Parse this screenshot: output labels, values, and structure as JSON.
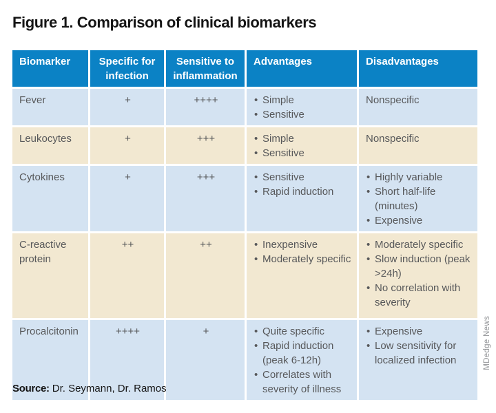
{
  "title": "Figure 1. Comparison of clinical biomarkers",
  "credit": "MDedge News",
  "source": {
    "label": "Source:",
    "names": "Dr. Seymann, Dr. Ramos"
  },
  "colors": {
    "header_bg": "#0B82C5",
    "header_text": "#FFFFFF",
    "row_blue": "#D4E3F2",
    "row_tan": "#F2E8D1",
    "body_text": "#57585A",
    "title_text": "#151515",
    "credit_text": "#919396"
  },
  "chart_data": {
    "type": "table",
    "title": "Figure 1. Comparison of clinical biomarkers",
    "columns": [
      "Biomarker",
      "Specific for infection",
      "Sensitive to inflammation",
      "Advantages",
      "Disadvantages"
    ],
    "rows": [
      {
        "biomarker": "Fever",
        "specific_for_infection": "+",
        "sensitive_to_inflammation": "++++",
        "advantages": [
          "Simple",
          "Sensitive"
        ],
        "disadvantages": [
          "Nonspecific"
        ]
      },
      {
        "biomarker": "Leukocytes",
        "specific_for_infection": "+",
        "sensitive_to_inflammation": "+++",
        "advantages": [
          "Simple",
          "Sensitive"
        ],
        "disadvantages": [
          "Nonspecific"
        ]
      },
      {
        "biomarker": "Cytokines",
        "specific_for_infection": "+",
        "sensitive_to_inflammation": "+++",
        "advantages": [
          "Sensitive",
          "Rapid induction"
        ],
        "disadvantages": [
          "Highly variable",
          "Short half-life (minutes)",
          "Expensive"
        ]
      },
      {
        "biomarker": "C-reactive protein",
        "specific_for_infection": "++",
        "sensitive_to_inflammation": "++",
        "advantages": [
          "Inexpensive",
          "Moderately specific"
        ],
        "disadvantages": [
          "Moderately specific",
          "Slow induction (peak >24h)",
          "No correlation with severity"
        ]
      },
      {
        "biomarker": "Procalcitonin",
        "specific_for_infection": "++++",
        "sensitive_to_inflammation": "+",
        "advantages": [
          "Quite specific",
          "Rapid induction (peak 6-12h)",
          "Correlates with severity of illness"
        ],
        "disadvantages": [
          "Expensive",
          "Low sensitivity for localized infection"
        ]
      }
    ]
  }
}
